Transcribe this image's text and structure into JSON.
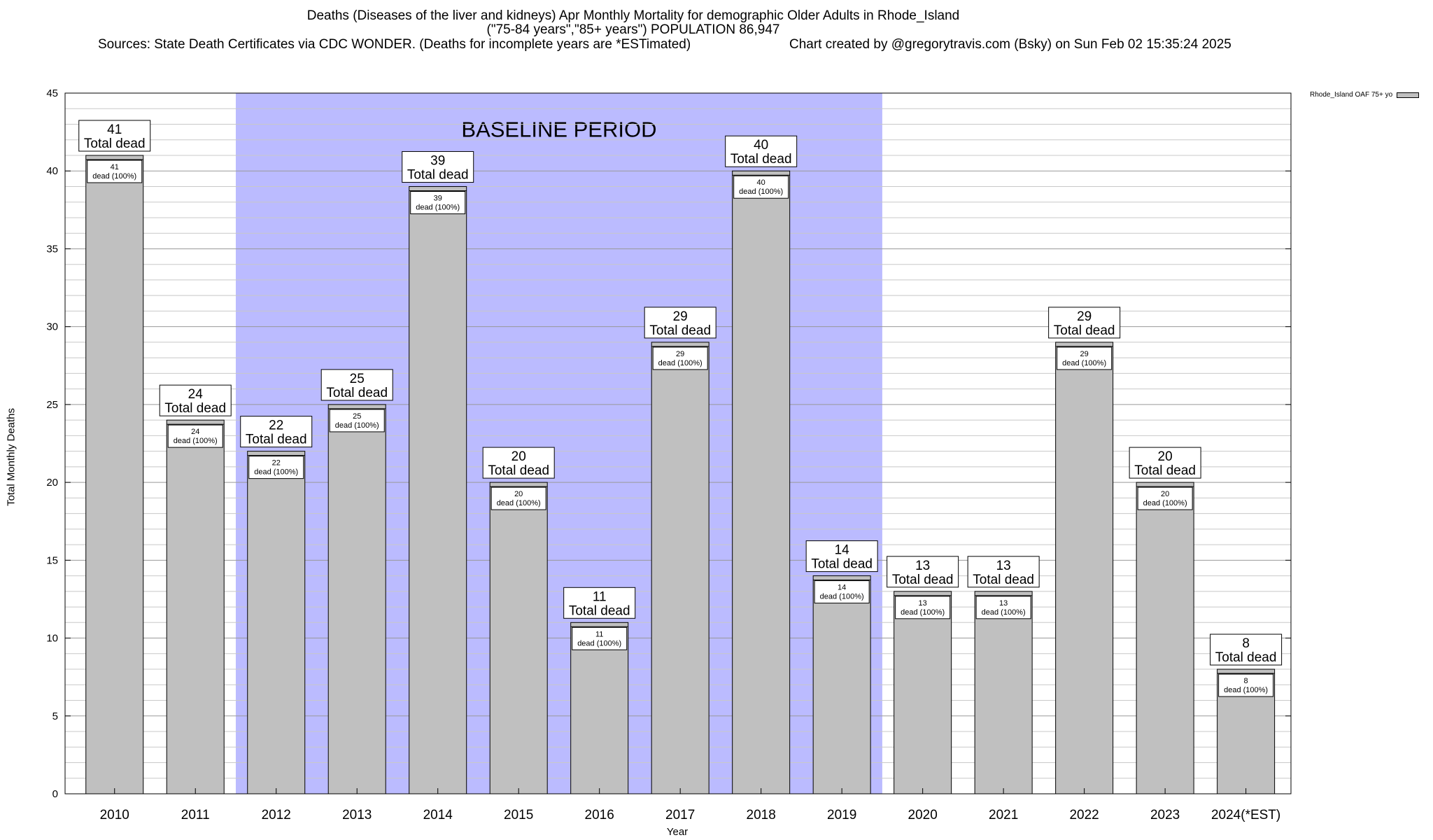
{
  "header": {
    "title_line1": "Deaths (Diseases of the liver and kidneys) Apr Monthly Mortality for demographic Older Adults in Rhode_Island",
    "title_line2": "(\"75-84 years\",\"85+ years\") POPULATION 86,947",
    "sources": "Sources: State Death Certificates via CDC WONDER. (Deaths for incomplete years are *ESTimated)",
    "credit": "Chart created by @gregorytravis.com (Bsky) on Sun Feb 02 15:35:24 2025"
  },
  "chart_data": {
    "type": "bar",
    "categories": [
      "2010",
      "2011",
      "2012",
      "2013",
      "2014",
      "2015",
      "2016",
      "2017",
      "2018",
      "2019",
      "2020",
      "2021",
      "2022",
      "2023",
      "2024(*EST)"
    ],
    "series": [
      {
        "name": "Rhode_Island OAF 75+ yo",
        "values": [
          41,
          24,
          22,
          25,
          39,
          20,
          11,
          29,
          40,
          14,
          13,
          13,
          29,
          20,
          8
        ],
        "color": "#c0c0c0"
      }
    ],
    "xlabel": "Year",
    "ylabel": "Total Monthly Deaths",
    "ylim": [
      0,
      45
    ],
    "yticks": [
      0,
      5,
      10,
      15,
      20,
      25,
      30,
      35,
      40,
      45
    ],
    "grid": true,
    "legend_position": "top-right",
    "top_label_suffix": "Total dead",
    "inner_label_suffix": "dead (100%)",
    "baseline": {
      "label": "BASELINE PERIOD",
      "from": "2012",
      "to": "2019",
      "color": "#bbbbff"
    }
  }
}
